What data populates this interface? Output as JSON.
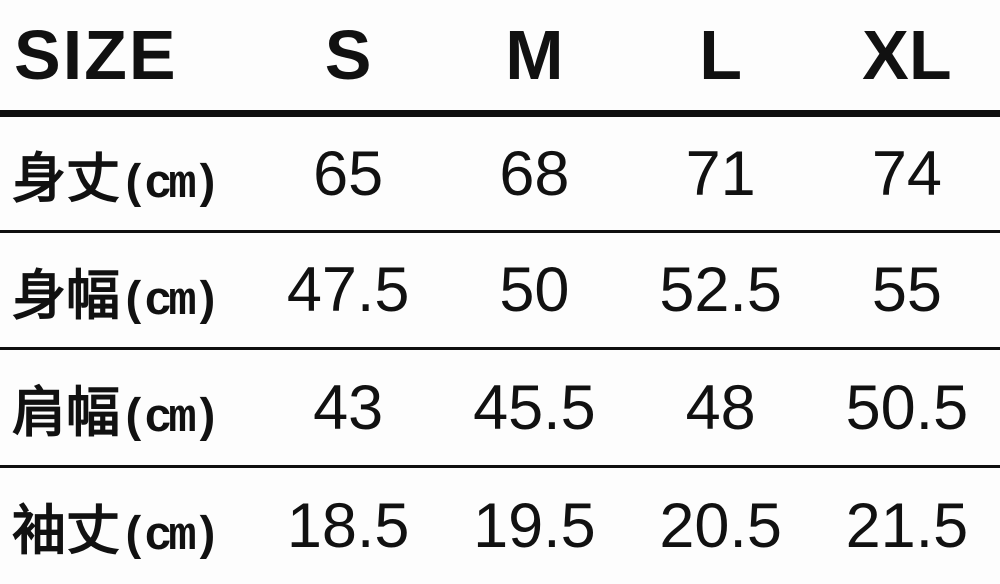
{
  "table": {
    "header": {
      "size_label": "SIZE",
      "columns": [
        "S",
        "M",
        "L",
        "XL"
      ]
    },
    "rows": [
      {
        "label": "身丈",
        "unit": "(cm)",
        "values": [
          "65",
          "68",
          "71",
          "74"
        ]
      },
      {
        "label": "身幅",
        "unit": "(cm)",
        "values": [
          "47.5",
          "50",
          "52.5",
          "55"
        ]
      },
      {
        "label": "肩幅",
        "unit": "(cm)",
        "values": [
          "43",
          "45.5",
          "48",
          "50.5"
        ]
      },
      {
        "label": "袖丈",
        "unit": "(cm)",
        "values": [
          "18.5",
          "19.5",
          "20.5",
          "21.5"
        ]
      }
    ]
  },
  "colors": {
    "background": "#fdfdfd",
    "text": "#111111",
    "rule": "#101010"
  },
  "chart_data": {
    "type": "table",
    "title": "SIZE",
    "columns": [
      "SIZE",
      "S",
      "M",
      "L",
      "XL"
    ],
    "rows": [
      [
        "身丈(cm)",
        65,
        68,
        71,
        74
      ],
      [
        "身幅(cm)",
        47.5,
        50,
        52.5,
        55
      ],
      [
        "肩幅(cm)",
        43,
        45.5,
        48,
        50.5
      ],
      [
        "袖丈(cm)",
        18.5,
        19.5,
        20.5,
        21.5
      ]
    ],
    "notes": "Apparel size chart; measurements in centimeters. Thick rule under header row, thin rules between data rows, no outer border."
  }
}
